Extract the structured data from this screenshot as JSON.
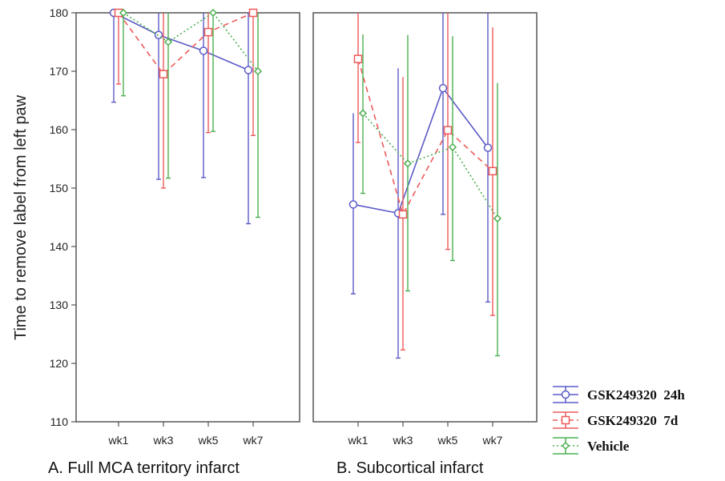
{
  "chart_data": {
    "type": "line",
    "ylabel": "Time to remove label from left paw",
    "ylim": [
      110,
      180
    ],
    "yticks": [
      110,
      120,
      130,
      140,
      150,
      160,
      170,
      180
    ],
    "categories": [
      "wk1",
      "wk3",
      "wk5",
      "wk7"
    ],
    "grid": false,
    "legend_position": "bottom-right",
    "legend": [
      {
        "name": "GSK249320  24h",
        "color": "#5b5bc8",
        "dash": "solid",
        "marker": "circle"
      },
      {
        "name": "GSK249320  7d",
        "color": "#ee5a5a",
        "dash": "dashed",
        "marker": "square"
      },
      {
        "name": "Vehicle",
        "color": "#4caf50",
        "dash": "dotted",
        "marker": "diamond"
      }
    ],
    "panels": [
      {
        "title": "A. Full MCA territory infarct",
        "series": [
          {
            "name": "GSK249320  24h",
            "values": [
              180,
              176.2,
              173.5,
              170.2
            ],
            "lower": [
              164.7,
              151.5,
              151.8,
              143.9
            ],
            "upper": [
              180,
              180,
              180,
              180
            ]
          },
          {
            "name": "GSK249320  7d",
            "values": [
              180,
              169.5,
              176.7,
              180
            ],
            "lower": [
              167.8,
              150,
              159.5,
              159
            ],
            "upper": [
              180,
              180,
              180,
              180
            ]
          },
          {
            "name": "Vehicle",
            "values": [
              180,
              175,
              180,
              170
            ],
            "lower": [
              165.8,
              151.7,
              159.7,
              145
            ],
            "upper": [
              180,
              180,
              180,
              180
            ]
          }
        ]
      },
      {
        "title": "B. Subcortical infarct",
        "series": [
          {
            "name": "GSK249320  24h",
            "values": [
              147.2,
              145.7,
              167.1,
              156.9
            ],
            "lower": [
              131.9,
              120.9,
              145.5,
              130.5
            ],
            "upper": [
              162.8,
              170.5,
              180,
              180
            ]
          },
          {
            "name": "GSK249320  7d",
            "values": [
              172.1,
              145.5,
              159.9,
              152.9
            ],
            "lower": [
              157.8,
              122.3,
              139.5,
              128.2
            ],
            "upper": [
              180,
              169,
              180,
              177.5
            ]
          },
          {
            "name": "Vehicle",
            "values": [
              162.8,
              154.2,
              157,
              144.8
            ],
            "lower": [
              149.1,
              132.4,
              137.6,
              121.3
            ],
            "upper": [
              176.3,
              176.2,
              176,
              168
            ]
          }
        ]
      }
    ]
  }
}
